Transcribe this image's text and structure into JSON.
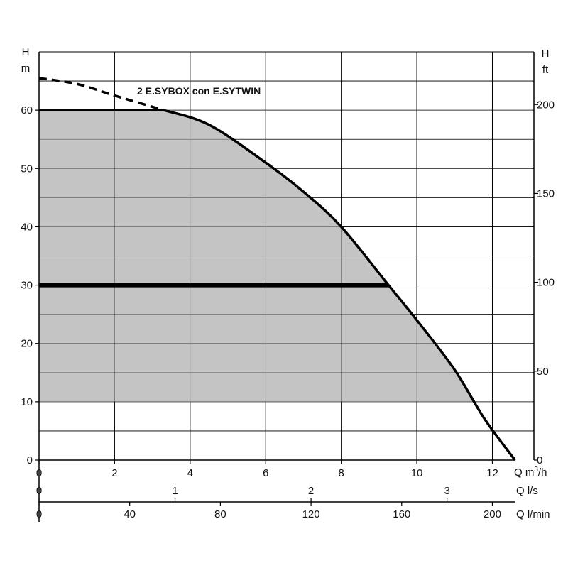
{
  "chart_data": {
    "type": "line",
    "title": "",
    "series_label": "2 E.SYBOX con E.SYTWIN",
    "x_axis": {
      "label_html": "Q m",
      "label_sup": "3",
      "label_tail": "/h",
      "range": [
        0,
        12.6
      ],
      "ticks": [
        0,
        2,
        4,
        6,
        8,
        10,
        12
      ]
    },
    "x_axis_ls": {
      "label": "Q l/s",
      "ticks": [
        0,
        1,
        2,
        3
      ]
    },
    "x_axis_lmin": {
      "label": "Q l/min",
      "ticks": [
        0,
        40,
        80,
        120,
        160,
        200
      ]
    },
    "y_axis_left": {
      "label_top": "H",
      "label_unit": "m",
      "range": [
        0,
        70
      ],
      "ticks": [
        0,
        10,
        20,
        30,
        40,
        50,
        60
      ]
    },
    "y_axis_right": {
      "label_top": "H",
      "label_unit": "ft",
      "ticks": [
        0,
        50,
        100,
        150,
        200
      ]
    },
    "grid": true,
    "curve_solid": [
      [
        3.3,
        60
      ],
      [
        4.5,
        57.5
      ],
      [
        6,
        51
      ],
      [
        7,
        46
      ],
      [
        8,
        40
      ],
      [
        9.25,
        30
      ],
      [
        10,
        24
      ],
      [
        11,
        15.5
      ],
      [
        11.8,
        7
      ],
      [
        12.6,
        0
      ]
    ],
    "curve_dashed": [
      [
        0,
        65.5
      ],
      [
        1,
        64.5
      ],
      [
        2,
        62.5
      ],
      [
        3.3,
        60
      ]
    ],
    "shaded_region": [
      [
        0,
        60
      ],
      [
        3.3,
        60
      ],
      [
        4.5,
        57.5
      ],
      [
        6,
        51
      ],
      [
        7,
        46
      ],
      [
        8,
        40
      ],
      [
        9.25,
        30
      ],
      [
        10,
        24
      ],
      [
        11,
        15.5
      ],
      [
        11.55,
        10
      ],
      [
        0,
        10
      ]
    ],
    "reference_line": {
      "y": 30,
      "x_end": 9.25
    }
  }
}
